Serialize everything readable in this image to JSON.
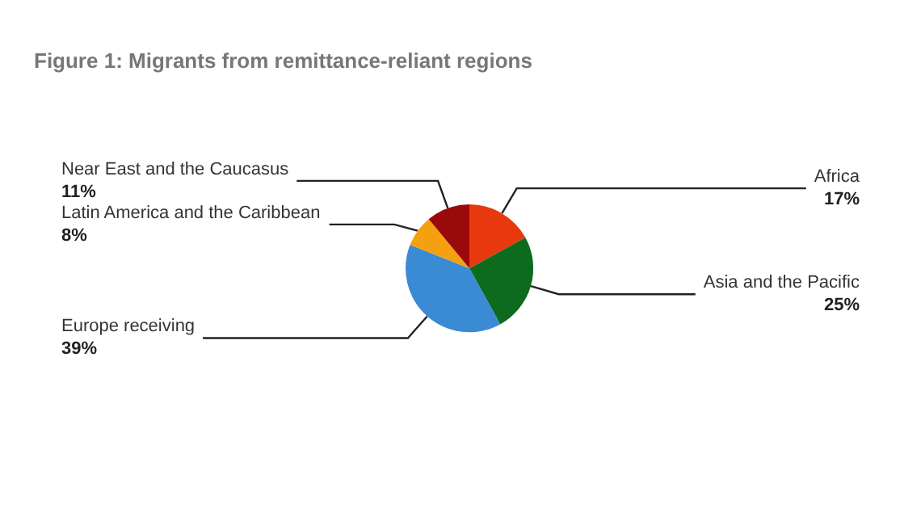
{
  "chart_data": {
    "type": "pie",
    "title": "Figure 1: Migrants from remittance-reliant regions",
    "categories": [
      "Africa",
      "Asia and the Pacific",
      "Europe receiving",
      "Latin America and the Caribbean",
      "Near East and the Caucasus"
    ],
    "values": [
      17,
      25,
      39,
      8,
      11
    ],
    "colors": [
      "#e8380d",
      "#0d6b1e",
      "#3a8ad4",
      "#f5a00f",
      "#9b0a0a"
    ],
    "value_labels": [
      "17%",
      "25%",
      "39%",
      "8%",
      "11%"
    ]
  }
}
